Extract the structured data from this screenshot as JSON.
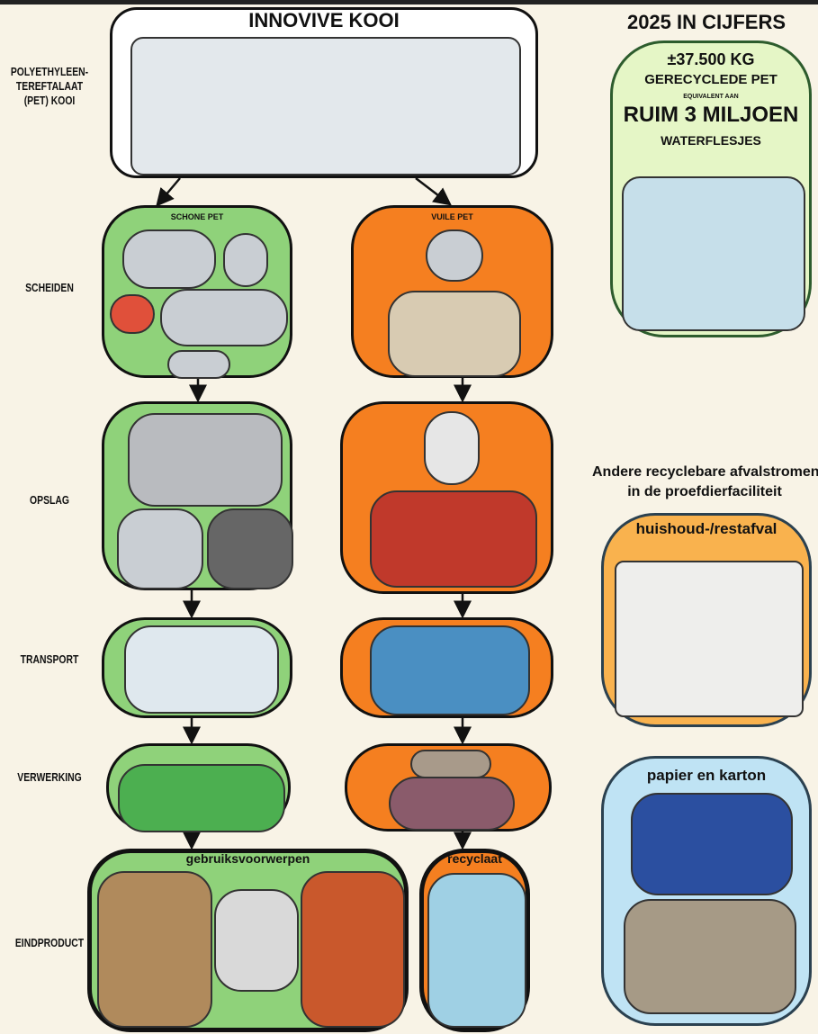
{
  "header": {
    "title": "INNOVIVE KOOI",
    "cage_label": [
      "POLYETHYLEEN-",
      "TEREFTALAAT",
      "(PET) KOOI"
    ]
  },
  "rows": [
    "SCHEIDEN",
    "OPSLAG",
    "TRANSPORT",
    "VERWERKING",
    "EINDPRODUCT"
  ],
  "columns": {
    "clean": "SCHONE PET",
    "dirty": "VUILE PET"
  },
  "products": {
    "clean": "gebruiksvoorwerpen",
    "dirty": "recyclaat"
  },
  "stats": {
    "title": "2025 IN CIJFERS",
    "amount": "±37.500 KG",
    "amount_label": "GERECYCLEDE PET",
    "equivalent": "EQUIVALENT AAN",
    "bottles": "RUIM 3 MILJOEN",
    "bottles_label": "WATERFLESJES"
  },
  "other_streams": {
    "title": [
      "Andere recyclebare afvalstromen",
      "in de proefdierfaciliteit"
    ],
    "household": "huishoud-/restafval",
    "paper": "papier en karton"
  }
}
